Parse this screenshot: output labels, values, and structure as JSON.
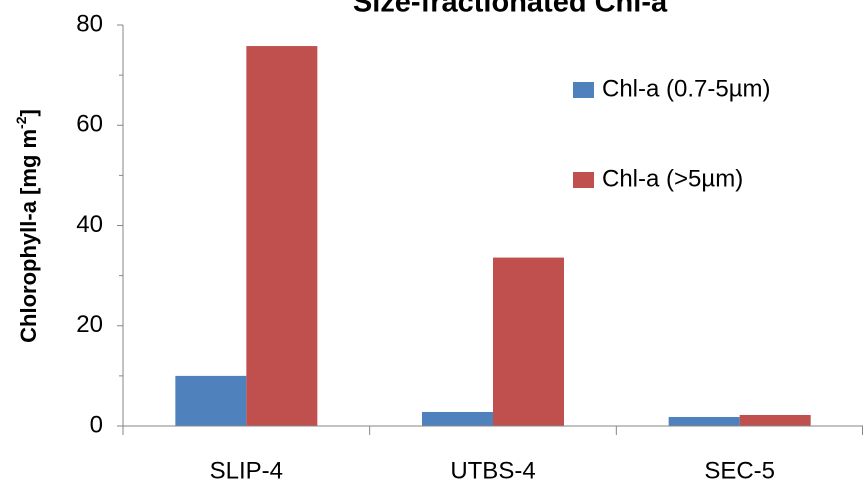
{
  "chart_data": {
    "type": "bar",
    "title": "Size-fractionated Chl-a",
    "y_label": "Chlorophyll-a [mg m",
    "y_label_sup": "-2",
    "y_label_end": "]",
    "categories": [
      "SLIP-4",
      "UTBS-4",
      "SEC-5"
    ],
    "series": [
      {
        "name": "Chl-a (0.7-5µm)",
        "color": "#4f81bd",
        "values": [
          10,
          2.8,
          1.8
        ]
      },
      {
        "name": "Chl-a (>5µm)",
        "color": "#c0504d",
        "values": [
          75.8,
          33.6,
          2.2
        ]
      }
    ],
    "ylim": [
      0,
      80
    ],
    "yticks": [
      0,
      20,
      40,
      60,
      80
    ],
    "yticks_minor": [
      10,
      30,
      50,
      70
    ],
    "legend": "right"
  }
}
